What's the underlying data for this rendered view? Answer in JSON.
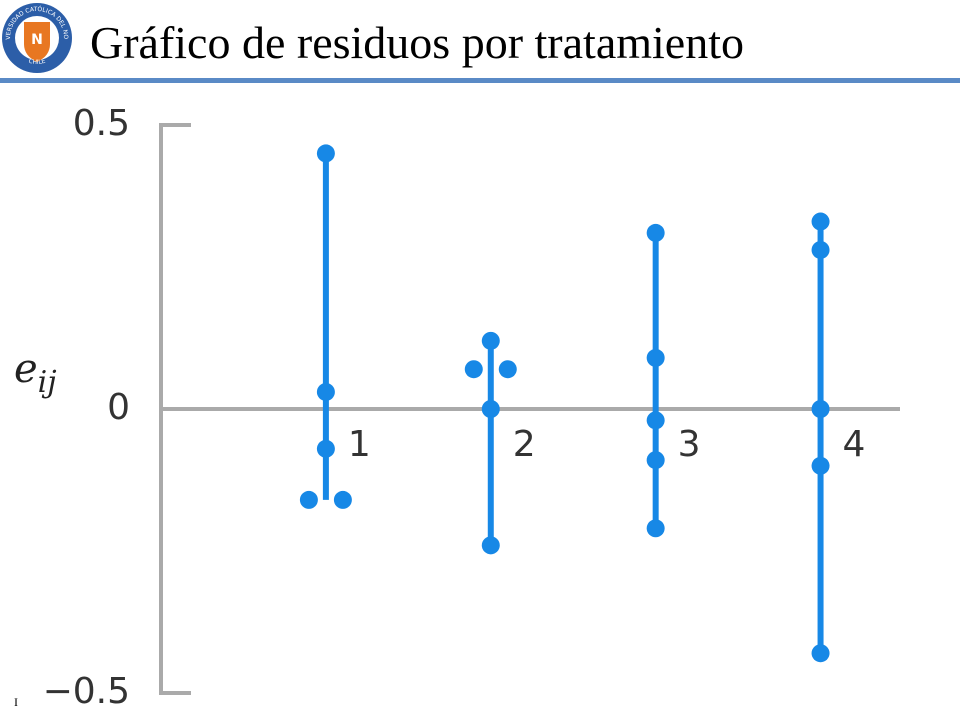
{
  "header": {
    "title": "Gráfico de residuos por tratamiento",
    "logo_text": "UNIVERSIDAD CATÓLICA DEL NORTE",
    "logo_sub": "CHILE",
    "logo_letter": "N"
  },
  "footer": "I",
  "chart_data": {
    "type": "scatter",
    "ylabel": "e",
    "ylabel_sub": "ij",
    "categories": [
      "1",
      "2",
      "3",
      "4"
    ],
    "x": [
      1,
      1,
      1,
      1,
      1,
      2,
      2,
      2,
      2,
      2,
      3,
      3,
      3,
      3,
      3,
      4,
      4,
      4,
      4,
      4
    ],
    "series": [
      {
        "color": "#1788e6",
        "values": [
          0.45,
          0.03,
          -0.07,
          -0.16,
          -0.16,
          0.12,
          0.07,
          0.07,
          0,
          -0.24,
          0.31,
          0.09,
          -0.02,
          -0.09,
          -0.21,
          0.33,
          0.28,
          0,
          -0.1,
          -0.43
        ]
      }
    ],
    "xlim": [
      0,
      4.5
    ],
    "ylim": [
      -0.5,
      0.5
    ],
    "yticks": [
      {
        "value": 0.5,
        "label": "0.5"
      },
      0,
      {
        "value": -0.5,
        "label": "−0.5"
      }
    ],
    "axis_color": "#aaaaaa"
  }
}
